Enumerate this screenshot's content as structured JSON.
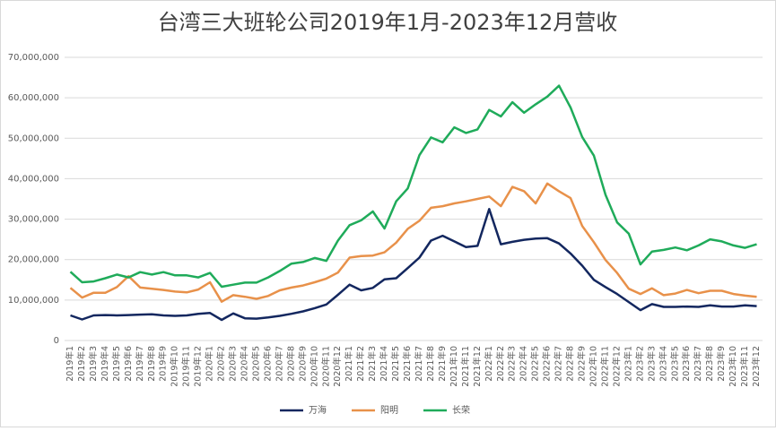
{
  "chart_data": {
    "type": "line",
    "title": "台湾三大班轮公司2019年1月-2023年12月营收",
    "categories": [
      "2019年1",
      "2019年2",
      "2019年3",
      "2019年4",
      "2019年5",
      "2019年6",
      "2019年7",
      "2019年8",
      "2019年9",
      "2019年10",
      "2019年11",
      "2019年12",
      "2020年1",
      "2020年2",
      "2020年3",
      "2020年4",
      "2020年5",
      "2020年6",
      "2020年7",
      "2020年8",
      "2020年9",
      "2020年10",
      "2020年11",
      "2020年12",
      "2021年1",
      "2021年2",
      "2021年3",
      "2021年4",
      "2021年5",
      "2021年6",
      "2021年7",
      "2021年8",
      "2021年9",
      "2021年10",
      "2021年11",
      "2021年12",
      "2022年1",
      "2022年2",
      "2022年3",
      "2022年4",
      "2022年5",
      "2022年6",
      "2022年7",
      "2022年8",
      "2022年9",
      "2022年10",
      "2022年11",
      "2022年12",
      "2023年1",
      "2023年2",
      "2023年3",
      "2023年4",
      "2023年5",
      "2023年6",
      "2023年7",
      "2023年8",
      "2023年9",
      "2023年10",
      "2023年11",
      "2023年12"
    ],
    "series": [
      {
        "name": "万海",
        "color": "#13275f",
        "values": [
          6200000,
          5200000,
          6200000,
          6300000,
          6200000,
          6300000,
          6400000,
          6500000,
          6200000,
          6100000,
          6200000,
          6600000,
          6800000,
          5100000,
          6700000,
          5500000,
          5400000,
          5700000,
          6100000,
          6600000,
          7200000,
          8000000,
          8900000,
          11300000,
          13800000,
          12400000,
          13000000,
          15100000,
          15400000,
          17900000,
          20500000,
          24700000,
          25900000,
          24500000,
          23100000,
          23400000,
          32500000,
          23800000,
          24400000,
          24900000,
          25200000,
          25300000,
          24000000,
          21500000,
          18500000,
          15000000,
          13200000,
          11500000,
          9500000,
          7500000,
          9000000,
          8300000,
          8300000,
          8400000,
          8300000,
          8700000,
          8400000,
          8400000,
          8700000,
          8500000
        ]
      },
      {
        "name": "阳明",
        "color": "#e8914a",
        "values": [
          13000000,
          10600000,
          11800000,
          11800000,
          13200000,
          15900000,
          13100000,
          12800000,
          12500000,
          12100000,
          11900000,
          12600000,
          14400000,
          9600000,
          11200000,
          10800000,
          10300000,
          11000000,
          12400000,
          13100000,
          13600000,
          14400000,
          15300000,
          16800000,
          20500000,
          20900000,
          21000000,
          21800000,
          24200000,
          27600000,
          29600000,
          32800000,
          33200000,
          33900000,
          34400000,
          35000000,
          35600000,
          33200000,
          38000000,
          36900000,
          33900000,
          38800000,
          36900000,
          35200000,
          28300000,
          24300000,
          19900000,
          16700000,
          12800000,
          11500000,
          12900000,
          11200000,
          11600000,
          12500000,
          11700000,
          12300000,
          12300000,
          11500000,
          11100000,
          10800000
        ]
      },
      {
        "name": "长荣",
        "color": "#1fab5a",
        "values": [
          17000000,
          14400000,
          14600000,
          15400000,
          16300000,
          15600000,
          16900000,
          16300000,
          16900000,
          16100000,
          16100000,
          15600000,
          16700000,
          13300000,
          13800000,
          14300000,
          14300000,
          15600000,
          17200000,
          19000000,
          19400000,
          20400000,
          19700000,
          24700000,
          28500000,
          29700000,
          31900000,
          27700000,
          34400000,
          37600000,
          45800000,
          50200000,
          49000000,
          52700000,
          51300000,
          52200000,
          57000000,
          55400000,
          58900000,
          56300000,
          58400000,
          60300000,
          63000000,
          57600000,
          50300000,
          45700000,
          36000000,
          29200000,
          26400000,
          18800000,
          22000000,
          22400000,
          23000000,
          22300000,
          23500000,
          25000000,
          24500000,
          23500000,
          22900000,
          23800000
        ]
      }
    ],
    "ylim": [
      0,
      70000000
    ],
    "yticks": [
      0,
      {
        "value": 10000000,
        "label": "10,000,000"
      },
      {
        "value": 20000000,
        "label": "20,000,000"
      },
      {
        "value": 30000000,
        "label": "30,000,000"
      },
      {
        "value": 40000000,
        "label": "40,000,000"
      },
      {
        "value": 50000000,
        "label": "50,000,000"
      },
      {
        "value": 60000000,
        "label": "60,000,000"
      },
      {
        "value": 70000000,
        "label": "70,000,000"
      }
    ],
    "grid": true,
    "legend": "bottom"
  }
}
